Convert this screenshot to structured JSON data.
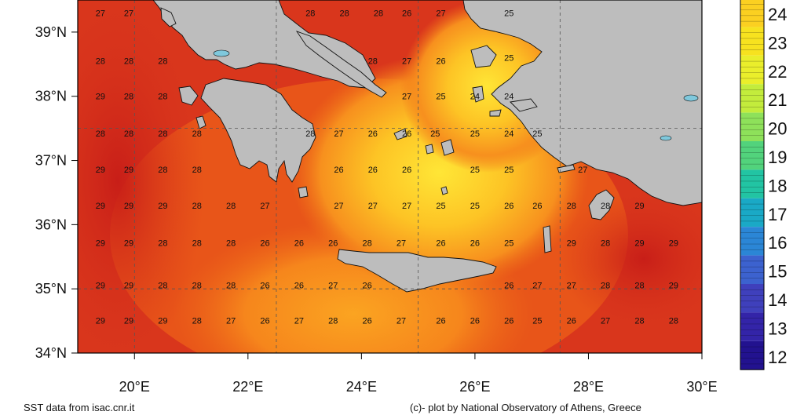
{
  "map": {
    "lat_labels": [
      "39°N",
      "38°N",
      "37°N",
      "36°N",
      "35°N",
      "34°N"
    ],
    "lon_labels": [
      "20°E",
      "22°E",
      "24°E",
      "26°E",
      "28°E",
      "30°E"
    ],
    "lon_range": [
      19,
      30
    ],
    "lat_range": [
      34,
      39.5
    ],
    "grid_lons": [
      20,
      22.5,
      25,
      27.5
    ],
    "grid_lats": [
      35,
      37.5
    ],
    "colors": {
      "land": "#bdbdbd",
      "sea_hot": "#d3291b",
      "sea_warm": "#ef6418",
      "sea_mild": "#fbb51c",
      "sea_cool": "#ffe636"
    },
    "sst_values": [
      {
        "lon": 19.4,
        "lat": 39.3,
        "v": "27"
      },
      {
        "lon": 19.9,
        "lat": 39.3,
        "v": "27"
      },
      {
        "lon": 23.1,
        "lat": 39.3,
        "v": "28"
      },
      {
        "lon": 23.7,
        "lat": 39.3,
        "v": "28"
      },
      {
        "lon": 24.3,
        "lat": 39.3,
        "v": "28"
      },
      {
        "lon": 24.8,
        "lat": 39.3,
        "v": "26"
      },
      {
        "lon": 25.4,
        "lat": 39.3,
        "v": "27"
      },
      {
        "lon": 26.6,
        "lat": 39.3,
        "v": "25"
      },
      {
        "lon": 19.4,
        "lat": 38.55,
        "v": "28"
      },
      {
        "lon": 19.9,
        "lat": 38.55,
        "v": "28"
      },
      {
        "lon": 20.5,
        "lat": 38.55,
        "v": "28"
      },
      {
        "lon": 24.2,
        "lat": 38.55,
        "v": "28"
      },
      {
        "lon": 24.8,
        "lat": 38.55,
        "v": "27"
      },
      {
        "lon": 25.4,
        "lat": 38.55,
        "v": "26"
      },
      {
        "lon": 26.6,
        "lat": 38.6,
        "v": "25"
      },
      {
        "lon": 19.4,
        "lat": 38.0,
        "v": "29"
      },
      {
        "lon": 19.9,
        "lat": 38.0,
        "v": "28"
      },
      {
        "lon": 20.5,
        "lat": 38.0,
        "v": "28"
      },
      {
        "lon": 24.8,
        "lat": 38.0,
        "v": "27"
      },
      {
        "lon": 25.4,
        "lat": 38.0,
        "v": "25"
      },
      {
        "lon": 26.0,
        "lat": 38.0,
        "v": "24"
      },
      {
        "lon": 26.6,
        "lat": 38.0,
        "v": "24"
      },
      {
        "lon": 19.4,
        "lat": 37.42,
        "v": "28"
      },
      {
        "lon": 19.9,
        "lat": 37.42,
        "v": "28"
      },
      {
        "lon": 20.5,
        "lat": 37.42,
        "v": "28"
      },
      {
        "lon": 21.1,
        "lat": 37.42,
        "v": "28"
      },
      {
        "lon": 23.1,
        "lat": 37.42,
        "v": "28"
      },
      {
        "lon": 23.6,
        "lat": 37.42,
        "v": "27"
      },
      {
        "lon": 24.2,
        "lat": 37.42,
        "v": "26"
      },
      {
        "lon": 24.8,
        "lat": 37.42,
        "v": "26"
      },
      {
        "lon": 25.3,
        "lat": 37.42,
        "v": "25"
      },
      {
        "lon": 26.0,
        "lat": 37.42,
        "v": "25"
      },
      {
        "lon": 26.6,
        "lat": 37.42,
        "v": "24"
      },
      {
        "lon": 27.1,
        "lat": 37.42,
        "v": "25"
      },
      {
        "lon": 19.4,
        "lat": 36.86,
        "v": "29"
      },
      {
        "lon": 19.9,
        "lat": 36.86,
        "v": "29"
      },
      {
        "lon": 20.5,
        "lat": 36.86,
        "v": "28"
      },
      {
        "lon": 21.1,
        "lat": 36.86,
        "v": "28"
      },
      {
        "lon": 23.6,
        "lat": 36.86,
        "v": "26"
      },
      {
        "lon": 24.2,
        "lat": 36.86,
        "v": "26"
      },
      {
        "lon": 24.8,
        "lat": 36.86,
        "v": "26"
      },
      {
        "lon": 26.0,
        "lat": 36.86,
        "v": "25"
      },
      {
        "lon": 26.6,
        "lat": 36.86,
        "v": "25"
      },
      {
        "lon": 27.9,
        "lat": 36.86,
        "v": "27"
      },
      {
        "lon": 19.4,
        "lat": 36.3,
        "v": "29"
      },
      {
        "lon": 19.9,
        "lat": 36.3,
        "v": "29"
      },
      {
        "lon": 20.5,
        "lat": 36.3,
        "v": "29"
      },
      {
        "lon": 21.1,
        "lat": 36.3,
        "v": "28"
      },
      {
        "lon": 21.7,
        "lat": 36.3,
        "v": "28"
      },
      {
        "lon": 22.3,
        "lat": 36.3,
        "v": "27"
      },
      {
        "lon": 23.6,
        "lat": 36.3,
        "v": "27"
      },
      {
        "lon": 24.2,
        "lat": 36.3,
        "v": "27"
      },
      {
        "lon": 24.8,
        "lat": 36.3,
        "v": "27"
      },
      {
        "lon": 25.4,
        "lat": 36.3,
        "v": "25"
      },
      {
        "lon": 26.0,
        "lat": 36.3,
        "v": "25"
      },
      {
        "lon": 26.6,
        "lat": 36.3,
        "v": "26"
      },
      {
        "lon": 27.1,
        "lat": 36.3,
        "v": "26"
      },
      {
        "lon": 27.7,
        "lat": 36.3,
        "v": "28"
      },
      {
        "lon": 28.3,
        "lat": 36.3,
        "v": "28"
      },
      {
        "lon": 28.9,
        "lat": 36.3,
        "v": "29"
      },
      {
        "lon": 19.4,
        "lat": 35.72,
        "v": "29"
      },
      {
        "lon": 19.9,
        "lat": 35.72,
        "v": "29"
      },
      {
        "lon": 20.5,
        "lat": 35.72,
        "v": "28"
      },
      {
        "lon": 21.1,
        "lat": 35.72,
        "v": "28"
      },
      {
        "lon": 21.7,
        "lat": 35.72,
        "v": "28"
      },
      {
        "lon": 22.3,
        "lat": 35.72,
        "v": "26"
      },
      {
        "lon": 22.9,
        "lat": 35.72,
        "v": "26"
      },
      {
        "lon": 23.5,
        "lat": 35.72,
        "v": "26"
      },
      {
        "lon": 24.1,
        "lat": 35.72,
        "v": "28"
      },
      {
        "lon": 24.7,
        "lat": 35.72,
        "v": "27"
      },
      {
        "lon": 25.4,
        "lat": 35.72,
        "v": "26"
      },
      {
        "lon": 26.0,
        "lat": 35.72,
        "v": "26"
      },
      {
        "lon": 26.6,
        "lat": 35.72,
        "v": "25"
      },
      {
        "lon": 27.7,
        "lat": 35.72,
        "v": "29"
      },
      {
        "lon": 28.3,
        "lat": 35.72,
        "v": "28"
      },
      {
        "lon": 28.9,
        "lat": 35.72,
        "v": "29"
      },
      {
        "lon": 29.5,
        "lat": 35.72,
        "v": "29"
      },
      {
        "lon": 19.4,
        "lat": 35.06,
        "v": "29"
      },
      {
        "lon": 19.9,
        "lat": 35.06,
        "v": "29"
      },
      {
        "lon": 20.5,
        "lat": 35.06,
        "v": "28"
      },
      {
        "lon": 21.1,
        "lat": 35.06,
        "v": "28"
      },
      {
        "lon": 21.7,
        "lat": 35.06,
        "v": "28"
      },
      {
        "lon": 22.3,
        "lat": 35.06,
        "v": "26"
      },
      {
        "lon": 22.9,
        "lat": 35.06,
        "v": "26"
      },
      {
        "lon": 23.5,
        "lat": 35.06,
        "v": "27"
      },
      {
        "lon": 24.1,
        "lat": 35.06,
        "v": "26"
      },
      {
        "lon": 26.6,
        "lat": 35.06,
        "v": "26"
      },
      {
        "lon": 27.1,
        "lat": 35.06,
        "v": "27"
      },
      {
        "lon": 27.7,
        "lat": 35.06,
        "v": "27"
      },
      {
        "lon": 28.3,
        "lat": 35.06,
        "v": "28"
      },
      {
        "lon": 28.9,
        "lat": 35.06,
        "v": "28"
      },
      {
        "lon": 29.5,
        "lat": 35.06,
        "v": "29"
      },
      {
        "lon": 19.4,
        "lat": 34.51,
        "v": "29"
      },
      {
        "lon": 19.9,
        "lat": 34.51,
        "v": "29"
      },
      {
        "lon": 20.5,
        "lat": 34.51,
        "v": "29"
      },
      {
        "lon": 21.1,
        "lat": 34.51,
        "v": "28"
      },
      {
        "lon": 21.7,
        "lat": 34.51,
        "v": "27"
      },
      {
        "lon": 22.3,
        "lat": 34.51,
        "v": "26"
      },
      {
        "lon": 22.9,
        "lat": 34.51,
        "v": "27"
      },
      {
        "lon": 23.5,
        "lat": 34.51,
        "v": "28"
      },
      {
        "lon": 24.1,
        "lat": 34.51,
        "v": "26"
      },
      {
        "lon": 24.7,
        "lat": 34.51,
        "v": "27"
      },
      {
        "lon": 25.4,
        "lat": 34.51,
        "v": "26"
      },
      {
        "lon": 26.0,
        "lat": 34.51,
        "v": "26"
      },
      {
        "lon": 26.6,
        "lat": 34.51,
        "v": "26"
      },
      {
        "lon": 27.1,
        "lat": 34.51,
        "v": "25"
      },
      {
        "lon": 27.7,
        "lat": 34.51,
        "v": "26"
      },
      {
        "lon": 28.3,
        "lat": 34.51,
        "v": "27"
      },
      {
        "lon": 28.9,
        "lat": 34.51,
        "v": "28"
      },
      {
        "lon": 29.5,
        "lat": 34.51,
        "v": "28"
      }
    ]
  },
  "colorbar": {
    "labels": [
      "24",
      "23",
      "22",
      "21",
      "20",
      "19",
      "18",
      "17",
      "16",
      "15",
      "14",
      "13",
      "12"
    ],
    "colors": [
      "#fbd021",
      "#f7e21f",
      "#eaee2b",
      "#c3ec3c",
      "#8ee15a",
      "#52d37c",
      "#22c4a3",
      "#1aa9c6",
      "#2b86d6",
      "#3c62cf",
      "#3f40bc",
      "#3324a8",
      "#22128f"
    ]
  },
  "footer": {
    "source": "SST data from isac.cnr.it",
    "credit": "(c)- plot by National Observatory of Athens, Greece"
  }
}
